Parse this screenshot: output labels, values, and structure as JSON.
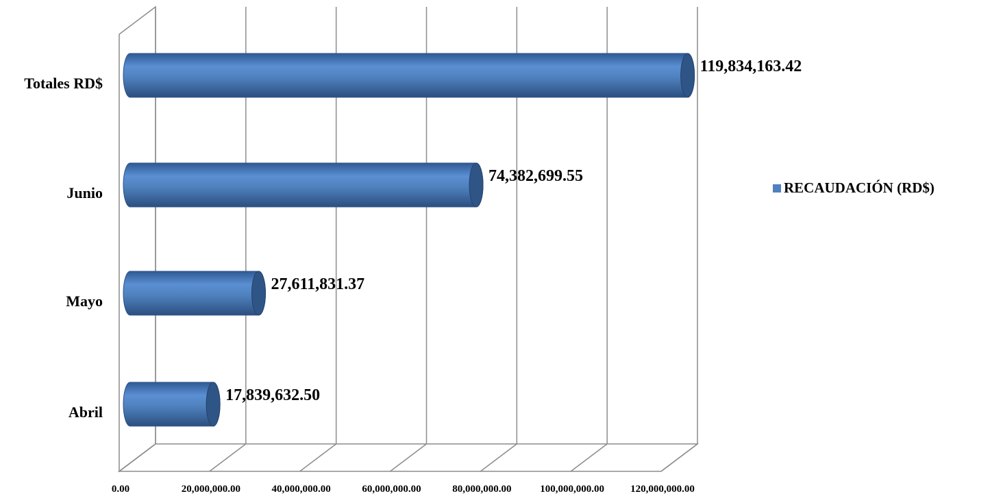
{
  "chart_data": {
    "type": "bar",
    "orientation": "horizontal",
    "style": "3d-cylinder",
    "categories": [
      "Abril",
      "Mayo",
      "Junio",
      "Totales RD$"
    ],
    "series": [
      {
        "name": "RECAUDACIÓN (RD$)",
        "values": [
          17839632.5,
          27611831.37,
          74382699.55,
          119834163.42
        ],
        "data_labels": [
          "17,839,632.50",
          "27,611,831.37",
          "74,382,699.55",
          "119,834,163.42"
        ],
        "color": "#4F81BD"
      }
    ],
    "xlim": [
      0,
      120000000
    ],
    "x_ticks": [
      0,
      20000000,
      40000000,
      60000000,
      80000000,
      100000000,
      120000000
    ],
    "x_tick_labels": [
      "0.00",
      "20,000,000.00",
      "40,000,000.00",
      "60,000,000.00",
      "80,000,000.00",
      "100,000,000.00",
      "120,000,000.00"
    ],
    "grid": true,
    "legend_position": "right",
    "title": "",
    "xlabel": "",
    "ylabel": ""
  }
}
